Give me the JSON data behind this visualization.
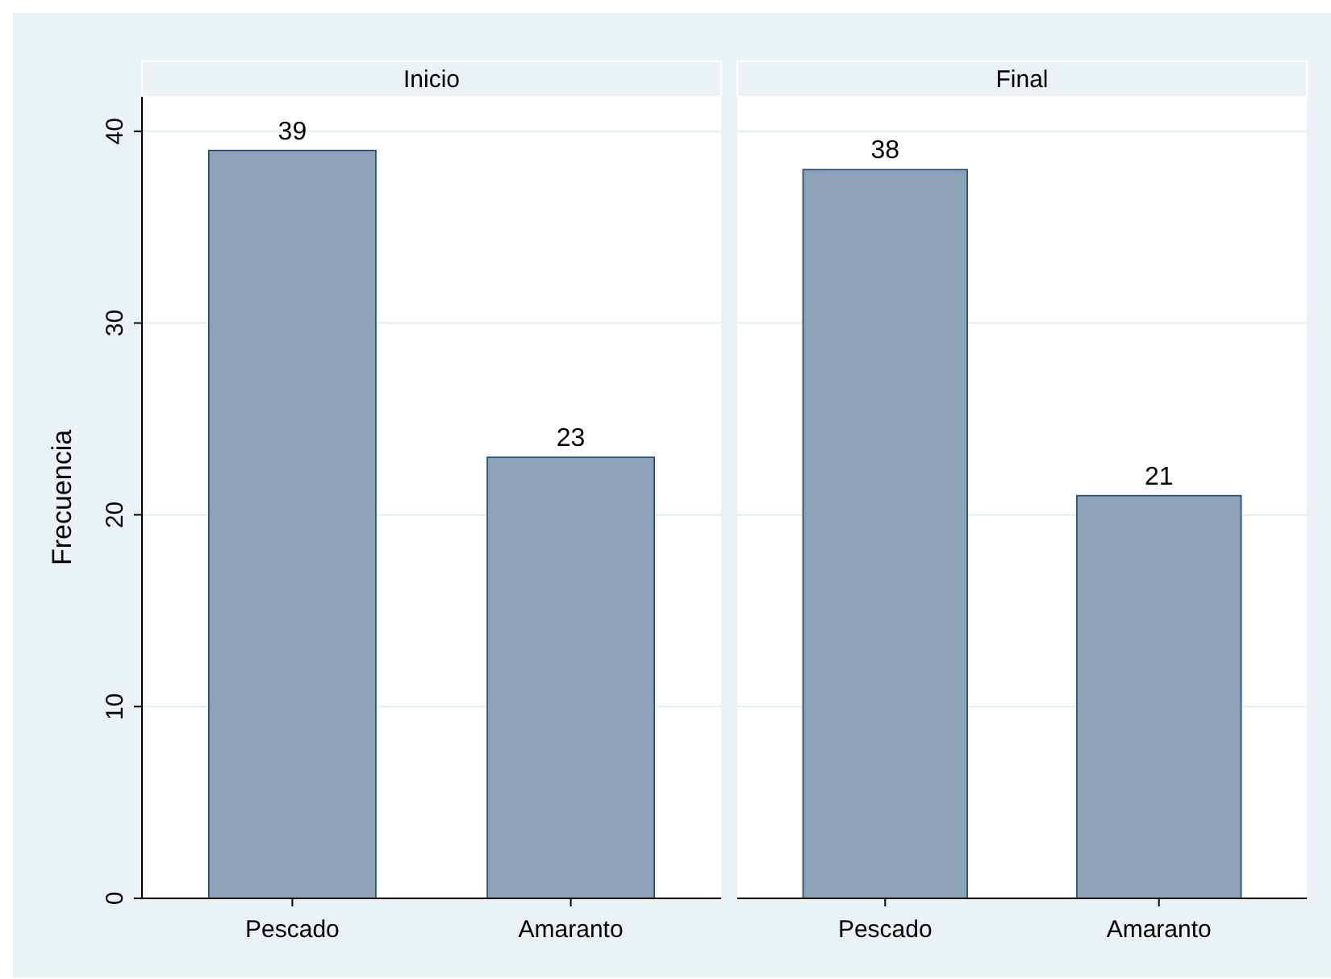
{
  "chart_data": [
    {
      "type": "bar",
      "title": "Inicio",
      "ylabel": "Frecuencia",
      "categories": [
        "Pescado",
        "Amaranto"
      ],
      "values": [
        39,
        23
      ],
      "color": "#8ca2b8",
      "ylim": [
        0,
        41.8
      ],
      "yticks": [
        0,
        10,
        20,
        30,
        40
      ],
      "grid": "y",
      "data_labels": true
    },
    {
      "type": "bar",
      "title": "Final",
      "categories": [
        "Pescado",
        "Amaranto"
      ],
      "values": [
        38,
        21
      ],
      "color": "#8ca2b8",
      "ylim": [
        0,
        41.8
      ],
      "yticks": [
        0,
        10,
        20,
        30,
        40
      ],
      "grid": "y",
      "data_labels": true,
      "tick_labels": "x"
    }
  ]
}
